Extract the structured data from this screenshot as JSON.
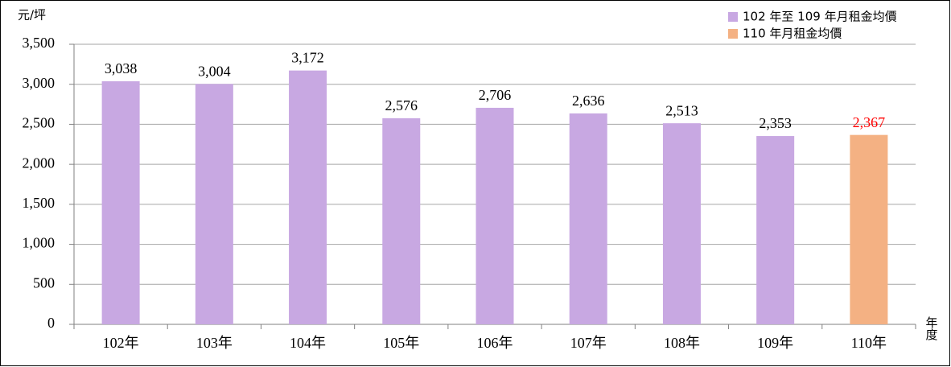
{
  "chart_data": {
    "type": "bar",
    "y_label": "元/坪",
    "x_label": "年度",
    "categories": [
      "102年",
      "103年",
      "104年",
      "105年",
      "106年",
      "107年",
      "108年",
      "109年",
      "110年"
    ],
    "series": [
      {
        "name": "102 年至 109 年月租金均價",
        "color": "#c8a8e2",
        "label_color": "#000000",
        "values": [
          3038,
          3004,
          3172,
          2576,
          2706,
          2636,
          2513,
          2353,
          null
        ],
        "value_labels": [
          "3,038",
          "3,004",
          "3,172",
          "2,576",
          "2,706",
          "2,636",
          "2,513",
          "2,353",
          null
        ]
      },
      {
        "name": "110 年月租金均價",
        "color": "#f4b183",
        "label_color": "#ff0000",
        "values": [
          null,
          null,
          null,
          null,
          null,
          null,
          null,
          null,
          2367
        ],
        "value_labels": [
          null,
          null,
          null,
          null,
          null,
          null,
          null,
          null,
          "2,367"
        ]
      }
    ],
    "ylim": [
      0,
      3500
    ],
    "yticks": [
      0,
      500,
      {
        "value": 1000,
        "label": "1,000"
      },
      {
        "value": 1500,
        "label": "1,500"
      },
      {
        "value": 2000,
        "label": "2,000"
      },
      {
        "value": 2500,
        "label": "2,500"
      },
      {
        "value": 3000,
        "label": "3,000"
      },
      {
        "value": 3500,
        "label": "3,500"
      }
    ],
    "grid": true,
    "legend": "top-right"
  }
}
